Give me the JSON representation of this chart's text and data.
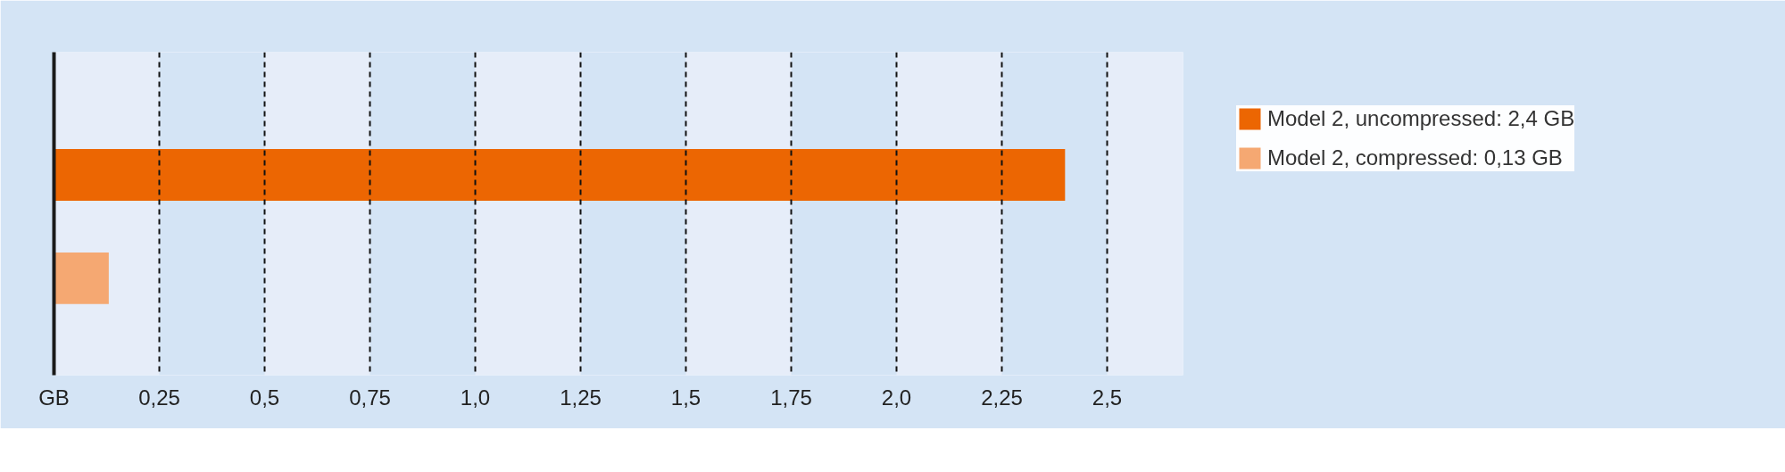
{
  "chart_data": {
    "type": "bar",
    "orientation": "horizontal",
    "categories": [
      null
    ],
    "series": [
      {
        "name": "Model 2, uncompressed: 2,4 GB",
        "color": "#ec6602",
        "values": [
          2.4
        ]
      },
      {
        "name": "Model 2, compressed: 0,13 GB",
        "color": "#f5a872",
        "values": [
          0.13
        ]
      }
    ],
    "xlim": [
      0,
      2.68
    ],
    "xticks": [
      {
        "value": 0,
        "label": "GB"
      },
      {
        "value": 0.25,
        "label": "0,25"
      },
      {
        "value": 0.5,
        "label": "0,5"
      },
      {
        "value": 0.75,
        "label": "0,75"
      },
      {
        "value": 1.0,
        "label": "1,0"
      },
      {
        "value": 1.25,
        "label": "1,25"
      },
      {
        "value": 1.5,
        "label": "1,5"
      },
      {
        "value": 1.75,
        "label": "1,75"
      },
      {
        "value": 2.0,
        "label": "2,0"
      },
      {
        "value": 2.25,
        "label": "2,25"
      },
      {
        "value": 2.5,
        "label": "2,5"
      }
    ],
    "bands": [
      {
        "axis": "x",
        "from": 0.25,
        "to": 0.5,
        "color": "#d4e4f5"
      },
      {
        "axis": "x",
        "from": 0.75,
        "to": 1.0,
        "color": "#d4e4f5"
      },
      {
        "axis": "x",
        "from": 1.25,
        "to": 1.5,
        "color": "#d4e4f5"
      },
      {
        "axis": "x",
        "from": 1.75,
        "to": 2.0,
        "color": "#d4e4f5"
      },
      {
        "axis": "x",
        "from": 2.25,
        "to": 2.5,
        "color": "#d4e4f5"
      }
    ],
    "grid": "x",
    "legend": "right",
    "tick_labels": "x"
  }
}
